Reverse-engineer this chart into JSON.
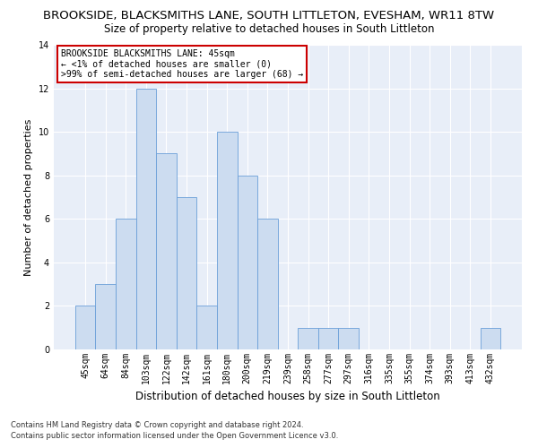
{
  "title": "BROOKSIDE, BLACKSMITHS LANE, SOUTH LITTLETON, EVESHAM, WR11 8TW",
  "subtitle": "Size of property relative to detached houses in South Littleton",
  "xlabel": "Distribution of detached houses by size in South Littleton",
  "ylabel": "Number of detached properties",
  "categories": [
    "45sqm",
    "64sqm",
    "84sqm",
    "103sqm",
    "122sqm",
    "142sqm",
    "161sqm",
    "180sqm",
    "200sqm",
    "219sqm",
    "239sqm",
    "258sqm",
    "277sqm",
    "297sqm",
    "316sqm",
    "335sqm",
    "355sqm",
    "374sqm",
    "393sqm",
    "413sqm",
    "432sqm"
  ],
  "values": [
    2,
    3,
    6,
    12,
    9,
    7,
    2,
    10,
    8,
    6,
    0,
    1,
    1,
    1,
    0,
    0,
    0,
    0,
    0,
    0,
    1
  ],
  "bar_color": "#ccdcf0",
  "bar_edge_color": "#6a9fd8",
  "background_color": "#e8eef8",
  "grid_color": "#ffffff",
  "annotation_box_text": "BROOKSIDE BLACKSMITHS LANE: 45sqm\n← <1% of detached houses are smaller (0)\n>99% of semi-detached houses are larger (68) →",
  "annotation_box_color": "#ffffff",
  "annotation_box_edge_color": "#cc0000",
  "footnote1": "Contains HM Land Registry data © Crown copyright and database right 2024.",
  "footnote2": "Contains public sector information licensed under the Open Government Licence v3.0.",
  "ylim": [
    0,
    14
  ],
  "yticks": [
    0,
    2,
    4,
    6,
    8,
    10,
    12,
    14
  ],
  "title_fontsize": 9.5,
  "subtitle_fontsize": 8.5,
  "xlabel_fontsize": 8.5,
  "ylabel_fontsize": 8,
  "tick_fontsize": 7,
  "annotation_fontsize": 7,
  "footnote_fontsize": 6
}
